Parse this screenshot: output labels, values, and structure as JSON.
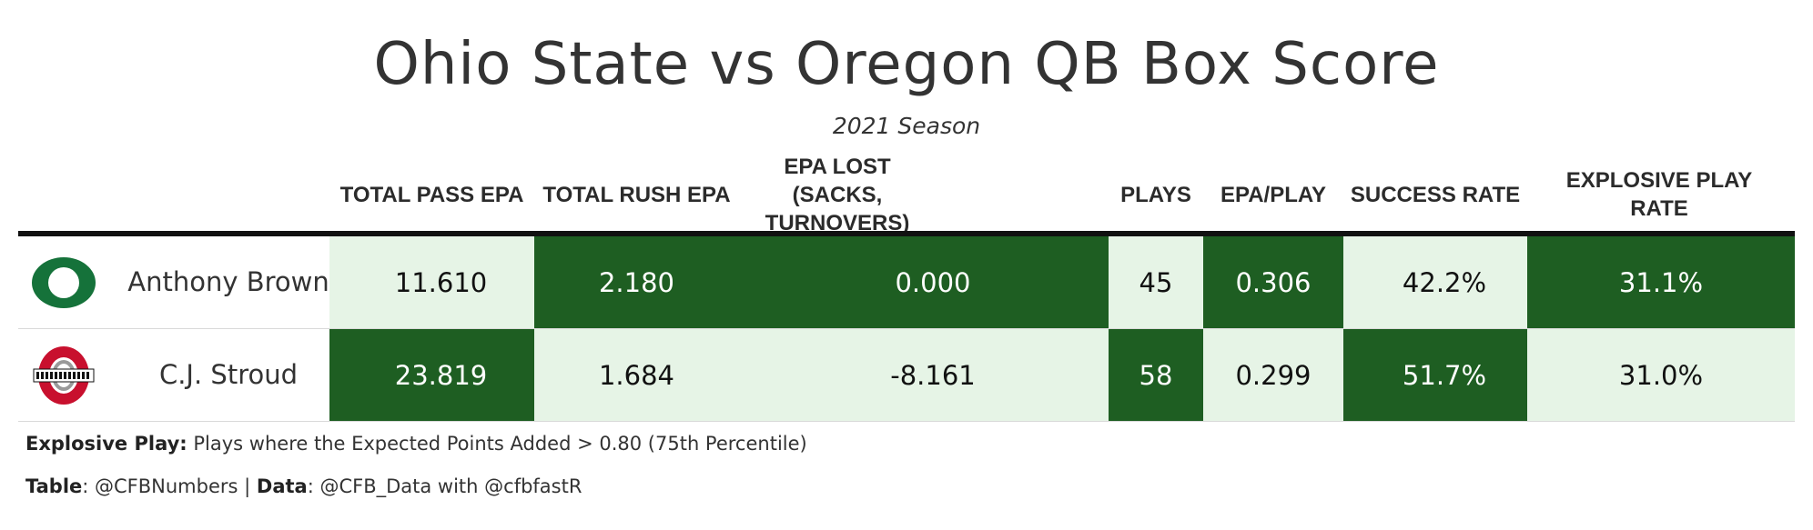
{
  "title": "Ohio State vs Oregon QB Box Score",
  "subtitle": "2021 Season",
  "colors": {
    "dark": "#1e5e22",
    "light": "#e6f4e6",
    "oregon": "#15723a",
    "osu_red": "#c8102e"
  },
  "chart_data": {
    "type": "table",
    "title": "Ohio State vs Oregon QB Box Score",
    "subtitle": "2021 Season",
    "columns": [
      "TOTAL PASS EPA",
      "TOTAL RUSH EPA",
      "EPA LOST (SACKS, TURNOVERS)",
      "PLAYS",
      "EPA/PLAY",
      "SUCCESS RATE",
      "EXPLOSIVE PLAY RATE"
    ],
    "rows": [
      {
        "team_logo": "oregon-o-logo",
        "player": "Anthony Brown",
        "values": [
          "11.610",
          "2.180",
          "0.000",
          "45",
          "0.306",
          "42.2%",
          "31.1%"
        ],
        "shade": [
          "light",
          "dark",
          "dark",
          "light",
          "dark",
          "light",
          "dark"
        ]
      },
      {
        "team_logo": "ohio-state-logo",
        "player": "C.J. Stroud",
        "values": [
          "23.819",
          "1.684",
          "-8.161",
          "58",
          "0.299",
          "51.7%",
          "31.0%"
        ],
        "shade": [
          "dark",
          "light",
          "light",
          "dark",
          "light",
          "dark",
          "light"
        ]
      }
    ]
  },
  "footnotes": {
    "explosive_label": "Explosive Play:",
    "explosive_text": " Plays where the Expected Points Added > 0.80 (75th Percentile)",
    "table_label": "Table",
    "table_text": ": @CFBNumbers | ",
    "data_label": "Data",
    "data_text": ": @CFB_Data with @cfbfastR"
  }
}
